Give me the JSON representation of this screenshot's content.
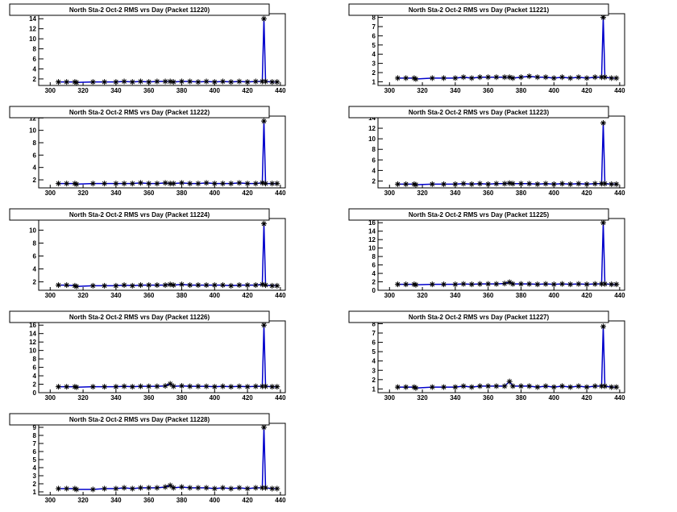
{
  "chart_data": [
    {
      "type": "line",
      "title": "North Sta-2 Oct-2 RMS vrs Day (Packet 11220)",
      "color": "#0000cc",
      "marker_color": "#000000",
      "x": [
        305,
        310,
        315,
        316,
        326,
        333,
        340,
        345,
        350,
        355,
        360,
        365,
        370,
        373,
        375,
        380,
        385,
        390,
        395,
        400,
        405,
        410,
        415,
        420,
        425,
        429,
        430,
        431,
        435,
        438
      ],
      "values": [
        1.4,
        1.4,
        1.4,
        1.3,
        1.4,
        1.4,
        1.4,
        1.5,
        1.4,
        1.5,
        1.4,
        1.5,
        1.5,
        1.5,
        1.4,
        1.5,
        1.5,
        1.4,
        1.5,
        1.4,
        1.5,
        1.4,
        1.5,
        1.4,
        1.5,
        1.5,
        14,
        1.5,
        1.4,
        1.4
      ],
      "xlim": [
        293,
        443
      ],
      "xticks": [
        300,
        320,
        340,
        360,
        380,
        400,
        420,
        440
      ],
      "ylim": [
        0.7,
        15
      ],
      "yticks": [
        2,
        4,
        6,
        8,
        10,
        12,
        14
      ]
    },
    {
      "type": "line",
      "title": "North Sta-2 Oct-2 RMS vrs Day (Packet 11221)",
      "color": "#0000cc",
      "marker_color": "#000000",
      "x": [
        305,
        310,
        315,
        316,
        326,
        333,
        340,
        345,
        350,
        355,
        360,
        365,
        370,
        373,
        375,
        380,
        385,
        390,
        395,
        400,
        405,
        410,
        415,
        420,
        425,
        429,
        430,
        431,
        435,
        438
      ],
      "values": [
        1.4,
        1.4,
        1.4,
        1.3,
        1.4,
        1.4,
        1.4,
        1.5,
        1.4,
        1.5,
        1.5,
        1.5,
        1.5,
        1.5,
        1.4,
        1.5,
        1.6,
        1.5,
        1.5,
        1.4,
        1.5,
        1.4,
        1.5,
        1.4,
        1.5,
        1.5,
        8,
        1.5,
        1.4,
        1.4
      ],
      "xlim": [
        293,
        443
      ],
      "xticks": [
        300,
        320,
        340,
        360,
        380,
        400,
        420,
        440
      ],
      "ylim": [
        0.6,
        8.4
      ],
      "yticks": [
        1,
        2,
        3,
        4,
        5,
        6,
        7,
        8
      ]
    },
    {
      "type": "line",
      "title": "North Sta-2 Oct-2 RMS vrs Day (Packet 11222)",
      "color": "#0000cc",
      "marker_color": "#000000",
      "x": [
        305,
        310,
        315,
        316,
        326,
        333,
        340,
        345,
        350,
        355,
        360,
        365,
        370,
        373,
        375,
        380,
        385,
        390,
        395,
        400,
        405,
        410,
        415,
        420,
        425,
        429,
        430,
        431,
        435,
        438
      ],
      "values": [
        1.4,
        1.4,
        1.4,
        1.3,
        1.4,
        1.4,
        1.4,
        1.4,
        1.4,
        1.5,
        1.4,
        1.4,
        1.5,
        1.4,
        1.4,
        1.5,
        1.4,
        1.4,
        1.5,
        1.4,
        1.4,
        1.4,
        1.5,
        1.4,
        1.4,
        1.5,
        11.5,
        1.4,
        1.4,
        1.4
      ],
      "xlim": [
        293,
        443
      ],
      "xticks": [
        300,
        320,
        340,
        360,
        380,
        400,
        420,
        440
      ],
      "ylim": [
        0.7,
        12.3
      ],
      "yticks": [
        2,
        4,
        6,
        8,
        10,
        12
      ]
    },
    {
      "type": "line",
      "title": "North Sta-2 Oct-2 RMS vrs Day (Packet 11223)",
      "color": "#0000cc",
      "marker_color": "#000000",
      "x": [
        305,
        310,
        315,
        316,
        326,
        333,
        340,
        345,
        350,
        355,
        360,
        365,
        370,
        373,
        375,
        380,
        385,
        390,
        395,
        400,
        405,
        410,
        415,
        420,
        425,
        429,
        430,
        431,
        435,
        438
      ],
      "values": [
        1.4,
        1.4,
        1.4,
        1.3,
        1.4,
        1.4,
        1.4,
        1.5,
        1.4,
        1.5,
        1.4,
        1.5,
        1.5,
        1.6,
        1.5,
        1.5,
        1.5,
        1.4,
        1.5,
        1.4,
        1.5,
        1.4,
        1.5,
        1.4,
        1.5,
        1.5,
        13,
        1.5,
        1.4,
        1.4
      ],
      "xlim": [
        293,
        443
      ],
      "xticks": [
        300,
        320,
        340,
        360,
        380,
        400,
        420,
        440
      ],
      "ylim": [
        0.7,
        14.3
      ],
      "yticks": [
        2,
        4,
        6,
        8,
        10,
        12,
        14
      ]
    },
    {
      "type": "line",
      "title": "North Sta-2 Oct-2 RMS vrs Day (Packet 11224)",
      "color": "#0000cc",
      "marker_color": "#000000",
      "x": [
        305,
        310,
        315,
        316,
        326,
        333,
        340,
        345,
        350,
        355,
        360,
        365,
        370,
        373,
        375,
        380,
        385,
        390,
        395,
        400,
        405,
        410,
        415,
        420,
        425,
        429,
        430,
        431,
        435,
        438
      ],
      "values": [
        1.5,
        1.5,
        1.4,
        1.3,
        1.4,
        1.4,
        1.4,
        1.5,
        1.4,
        1.5,
        1.5,
        1.5,
        1.5,
        1.6,
        1.5,
        1.6,
        1.5,
        1.5,
        1.5,
        1.5,
        1.5,
        1.4,
        1.5,
        1.5,
        1.5,
        1.6,
        11,
        1.5,
        1.4,
        1.4
      ],
      "xlim": [
        293,
        443
      ],
      "xticks": [
        300,
        320,
        340,
        360,
        380,
        400,
        420,
        440
      ],
      "ylim": [
        0.7,
        11.8
      ],
      "yticks": [
        2,
        4,
        6,
        8,
        10
      ]
    },
    {
      "type": "line",
      "title": "North Sta-2 Oct-2 RMS vrs Day (Packet 11225)",
      "color": "#0000cc",
      "marker_color": "#000000",
      "x": [
        305,
        310,
        315,
        316,
        326,
        333,
        340,
        345,
        350,
        355,
        360,
        365,
        370,
        373,
        375,
        380,
        385,
        390,
        395,
        400,
        405,
        410,
        415,
        420,
        425,
        429,
        430,
        431,
        435,
        438
      ],
      "values": [
        1.4,
        1.4,
        1.4,
        1.3,
        1.4,
        1.4,
        1.4,
        1.5,
        1.4,
        1.5,
        1.5,
        1.5,
        1.6,
        1.9,
        1.5,
        1.5,
        1.5,
        1.4,
        1.5,
        1.4,
        1.5,
        1.4,
        1.5,
        1.4,
        1.5,
        1.5,
        16,
        1.5,
        1.4,
        1.4
      ],
      "xlim": [
        293,
        443
      ],
      "xticks": [
        300,
        320,
        340,
        360,
        380,
        400,
        420,
        440
      ],
      "ylim": [
        0,
        17
      ],
      "yticks": [
        0,
        2,
        4,
        6,
        8,
        10,
        12,
        14,
        16
      ]
    },
    {
      "type": "line",
      "title": "North Sta-2 Oct-2 RMS vrs Day (Packet 11226)",
      "color": "#0000cc",
      "marker_color": "#000000",
      "x": [
        305,
        310,
        315,
        316,
        326,
        333,
        340,
        345,
        350,
        355,
        360,
        365,
        370,
        373,
        375,
        380,
        385,
        390,
        395,
        400,
        405,
        410,
        415,
        420,
        425,
        429,
        430,
        431,
        435,
        438
      ],
      "values": [
        1.4,
        1.4,
        1.4,
        1.3,
        1.4,
        1.4,
        1.4,
        1.5,
        1.4,
        1.5,
        1.5,
        1.5,
        1.6,
        2.1,
        1.5,
        1.6,
        1.5,
        1.5,
        1.5,
        1.4,
        1.5,
        1.4,
        1.5,
        1.4,
        1.5,
        1.5,
        16,
        1.5,
        1.4,
        1.4
      ],
      "xlim": [
        293,
        443
      ],
      "xticks": [
        300,
        320,
        340,
        360,
        380,
        400,
        420,
        440
      ],
      "ylim": [
        0,
        17
      ],
      "yticks": [
        0,
        2,
        4,
        6,
        8,
        10,
        12,
        14,
        16
      ]
    },
    {
      "type": "line",
      "title": "North Sta-2 Oct-2 RMS vrs Day (Packet 11227)",
      "color": "#0000cc",
      "marker_color": "#000000",
      "x": [
        305,
        310,
        315,
        316,
        326,
        333,
        340,
        345,
        350,
        355,
        360,
        365,
        370,
        373,
        375,
        380,
        385,
        390,
        395,
        400,
        405,
        410,
        415,
        420,
        425,
        429,
        430,
        431,
        435,
        438
      ],
      "values": [
        1.2,
        1.2,
        1.2,
        1.1,
        1.2,
        1.2,
        1.2,
        1.3,
        1.2,
        1.3,
        1.3,
        1.3,
        1.3,
        1.8,
        1.3,
        1.3,
        1.3,
        1.2,
        1.3,
        1.2,
        1.3,
        1.2,
        1.3,
        1.2,
        1.3,
        1.3,
        7.7,
        1.3,
        1.2,
        1.2
      ],
      "xlim": [
        293,
        443
      ],
      "xticks": [
        300,
        320,
        340,
        360,
        380,
        400,
        420,
        440
      ],
      "ylim": [
        0.6,
        8.3
      ],
      "yticks": [
        1,
        2,
        3,
        4,
        5,
        6,
        7,
        8
      ]
    },
    {
      "type": "line",
      "title": "North Sta-2 Oct-2 RMS vrs Day (Packet 11228)",
      "color": "#0000cc",
      "marker_color": "#000000",
      "x": [
        305,
        310,
        315,
        316,
        326,
        333,
        340,
        345,
        350,
        355,
        360,
        365,
        370,
        373,
        375,
        380,
        385,
        390,
        395,
        400,
        405,
        410,
        415,
        420,
        425,
        429,
        430,
        431,
        435,
        438
      ],
      "values": [
        1.4,
        1.4,
        1.4,
        1.3,
        1.3,
        1.4,
        1.4,
        1.5,
        1.4,
        1.5,
        1.5,
        1.5,
        1.6,
        1.8,
        1.5,
        1.6,
        1.5,
        1.5,
        1.5,
        1.4,
        1.5,
        1.4,
        1.5,
        1.4,
        1.5,
        1.5,
        9,
        1.5,
        1.4,
        1.4
      ],
      "xlim": [
        293,
        443
      ],
      "xticks": [
        300,
        320,
        340,
        360,
        380,
        400,
        420,
        440
      ],
      "ylim": [
        0.6,
        9.5
      ],
      "yticks": [
        1,
        2,
        3,
        4,
        5,
        6,
        7,
        8,
        9
      ]
    }
  ]
}
